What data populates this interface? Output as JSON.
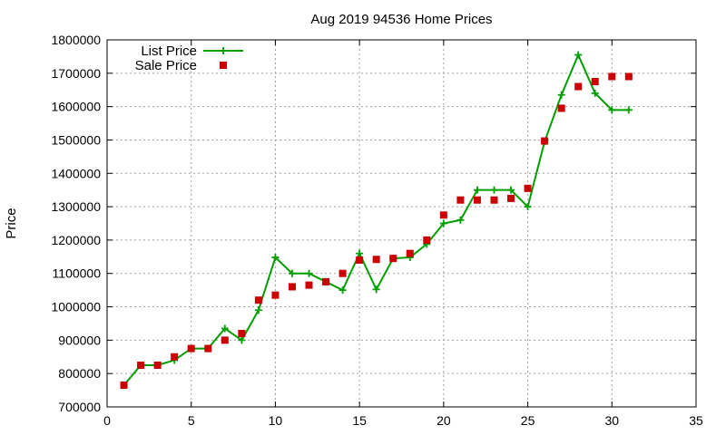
{
  "chart_data": {
    "type": "line",
    "title": "Aug 2019 94536 Home Prices",
    "xlabel": "",
    "ylabel": "Price",
    "xlim": [
      0,
      35
    ],
    "ylim": [
      700000,
      1800000
    ],
    "x_ticks": [
      0,
      5,
      10,
      15,
      20,
      25,
      30,
      35
    ],
    "y_ticks": [
      700000,
      800000,
      900000,
      1000000,
      1100000,
      1200000,
      1300000,
      1400000,
      1500000,
      1600000,
      1700000,
      1800000
    ],
    "grid": true,
    "legend_position": "top-left",
    "series": [
      {
        "name": "List Price",
        "style": "line-with-plus-markers",
        "color": "#009e00",
        "x": [
          1,
          2,
          3,
          4,
          5,
          6,
          7,
          8,
          9,
          10,
          11,
          12,
          13,
          14,
          15,
          16,
          17,
          18,
          19,
          20,
          21,
          22,
          23,
          24,
          25,
          26,
          27,
          28,
          29,
          30,
          31
        ],
        "y": [
          765000,
          825000,
          825000,
          840000,
          875000,
          875000,
          935000,
          900000,
          990000,
          1148000,
          1100000,
          1100000,
          1075000,
          1050000,
          1160000,
          1052000,
          1145000,
          1148000,
          1188000,
          1250000,
          1260000,
          1350000,
          1350000,
          1350000,
          1300000,
          1495000,
          1635000,
          1755000,
          1640000,
          1590000,
          1590000
        ]
      },
      {
        "name": "Sale Price",
        "style": "square-markers",
        "color": "#cc0000",
        "x": [
          1,
          2,
          3,
          4,
          5,
          6,
          7,
          8,
          9,
          10,
          11,
          12,
          13,
          14,
          15,
          16,
          17,
          18,
          19,
          20,
          21,
          22,
          23,
          24,
          25,
          26,
          27,
          28,
          29,
          30,
          31
        ],
        "y": [
          765000,
          825000,
          825000,
          850000,
          875000,
          875000,
          900000,
          920000,
          1020000,
          1035000,
          1060000,
          1065000,
          1075000,
          1100000,
          1140000,
          1142000,
          1145000,
          1160000,
          1200000,
          1275000,
          1320000,
          1320000,
          1320000,
          1325000,
          1355000,
          1497000,
          1595000,
          1660000,
          1675000,
          1690000,
          1690000
        ]
      }
    ]
  }
}
